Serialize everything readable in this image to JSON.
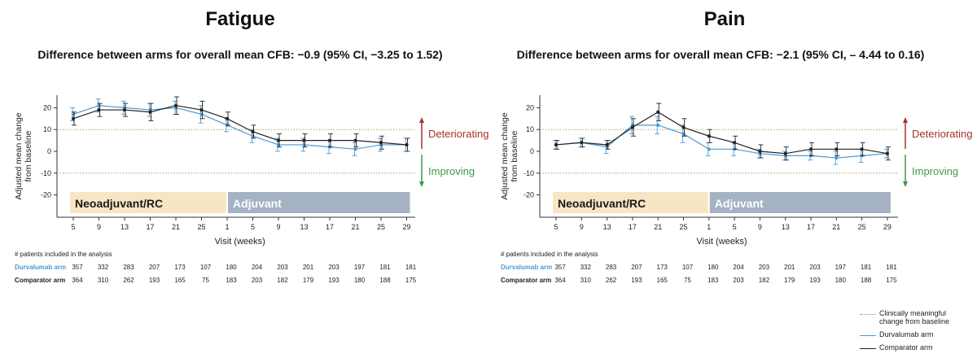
{
  "chart_data": [
    {
      "type": "line",
      "title": "Fatigue",
      "subtitle": "Difference between arms for overall mean CFB: −0.9 (95% CI, −3.25 to 1.52)",
      "ylabel": "Adjusted mean change from baseline",
      "xlabel": "Visit (weeks)",
      "ylim": [
        -25,
        25
      ],
      "yticks": [
        20,
        10,
        0,
        -10,
        -20
      ],
      "yticklabels": [
        "20",
        "10",
        "0",
        "-10",
        "-20"
      ],
      "categories": [
        "5",
        "9",
        "13",
        "17",
        "21",
        "25",
        "1",
        "5",
        "9",
        "13",
        "17",
        "21",
        "25",
        "29"
      ],
      "phases": [
        {
          "label": "Neoadjuvant/RC",
          "color": "#f7e6c4",
          "text_color": "#1a1a1a",
          "start": 0,
          "end": 6
        },
        {
          "label": "Adjuvant",
          "color": "#a4b2c3",
          "text_color": "#ffffff",
          "start": 6,
          "end": 13
        }
      ],
      "annotations": [
        {
          "label": "Deteriorating",
          "color": "#a8322a",
          "direction": "up"
        },
        {
          "label": "Improving",
          "color": "#3c9b47",
          "direction": "down"
        }
      ],
      "series": [
        {
          "name": "Durvalumab arm",
          "color": "#4a9ad6",
          "values": [
            17,
            21,
            20,
            19,
            20,
            17,
            12,
            7,
            3,
            3,
            2,
            1,
            3,
            3
          ],
          "errors": [
            3,
            3,
            3,
            3,
            3,
            4,
            3,
            3,
            3,
            3,
            3,
            3,
            3,
            3
          ]
        },
        {
          "name": "Comparator arm",
          "color": "#222222",
          "values": [
            15,
            19,
            19,
            18,
            21,
            19,
            15,
            9,
            5,
            5,
            5,
            5,
            4,
            3
          ],
          "errors": [
            3,
            3,
            3,
            4,
            4,
            4,
            3,
            3,
            3,
            3,
            3,
            3,
            3,
            3
          ]
        }
      ],
      "table": {
        "header": "# patients included in the analysis",
        "rows": [
          {
            "label": "Durvalumab arm",
            "color": "#4a9ad6",
            "values": [
              "357",
              "332",
              "283",
              "207",
              "173",
              "107",
              "180",
              "204",
              "203",
              "201",
              "203",
              "197",
              "181",
              "181"
            ]
          },
          {
            "label": "Comparator arm",
            "color": "#222222",
            "values": [
              "364",
              "310",
              "262",
              "193",
              "165",
              "75",
              "183",
              "203",
              "182",
              "179",
              "193",
              "180",
              "188",
              "175"
            ]
          }
        ]
      }
    },
    {
      "type": "line",
      "title": "Pain",
      "subtitle": "Difference between arms for overall mean CFB: −2.1 (95% CI, – 4.44 to 0.16)",
      "ylabel": "Adjusted mean change from baseline",
      "xlabel": "Visit (weeks)",
      "ylim": [
        -25,
        25
      ],
      "yticks": [
        20,
        10,
        0,
        -10,
        -20
      ],
      "yticklabels": [
        "20",
        "10",
        "0",
        "-10",
        "-20"
      ],
      "categories": [
        "5",
        "9",
        "13",
        "17",
        "21",
        "25",
        "1",
        "5",
        "9",
        "13",
        "17",
        "21",
        "25",
        "29"
      ],
      "phases": [
        {
          "label": "Neoadjuvant/RC",
          "color": "#f7e6c4",
          "text_color": "#1a1a1a",
          "start": 0,
          "end": 6
        },
        {
          "label": "Adjuvant",
          "color": "#a4b2c3",
          "text_color": "#ffffff",
          "start": 6,
          "end": 13
        }
      ],
      "annotations": [
        {
          "label": "Deteriorating",
          "color": "#a8322a",
          "direction": "up"
        },
        {
          "label": "Improving",
          "color": "#3c9b47",
          "direction": "down"
        }
      ],
      "series": [
        {
          "name": "Durvalumab arm",
          "color": "#4a9ad6",
          "values": [
            3,
            4,
            2,
            12,
            12,
            8,
            1,
            1,
            -1,
            -2,
            -2,
            -3,
            -2,
            -1
          ],
          "errors": [
            2,
            2,
            3,
            4,
            4,
            4,
            3,
            3,
            2,
            2,
            2,
            3,
            3,
            2
          ]
        },
        {
          "name": "Comparator arm",
          "color": "#222222",
          "values": [
            3,
            4,
            3,
            11,
            18,
            11,
            7,
            4,
            0,
            -1,
            1,
            1,
            1,
            -1
          ],
          "errors": [
            2,
            2,
            2,
            4,
            4,
            4,
            3,
            3,
            3,
            3,
            3,
            3,
            3,
            3
          ]
        }
      ],
      "table": {
        "header": "# patients included in the analysis",
        "rows": [
          {
            "label": "Durvalumab arm",
            "color": "#4a9ad6",
            "values": [
              "357",
              "332",
              "283",
              "207",
              "173",
              "107",
              "180",
              "204",
              "203",
              "201",
              "203",
              "197",
              "181",
              "181"
            ]
          },
          {
            "label": "Comparator arm",
            "color": "#222222",
            "values": [
              "364",
              "310",
              "262",
              "193",
              "165",
              "75",
              "183",
              "203",
              "182",
              "179",
              "193",
              "180",
              "188",
              "175"
            ]
          }
        ]
      }
    }
  ],
  "legend": {
    "items": [
      {
        "label": "Clinically meaningful change from baseline",
        "style": "dotted",
        "color": "#8a9a3a"
      },
      {
        "label": "Durvalumab arm",
        "style": "solid",
        "color": "#4a9ad6"
      },
      {
        "label": "Comparator arm",
        "style": "solid",
        "color": "#222222"
      }
    ]
  }
}
